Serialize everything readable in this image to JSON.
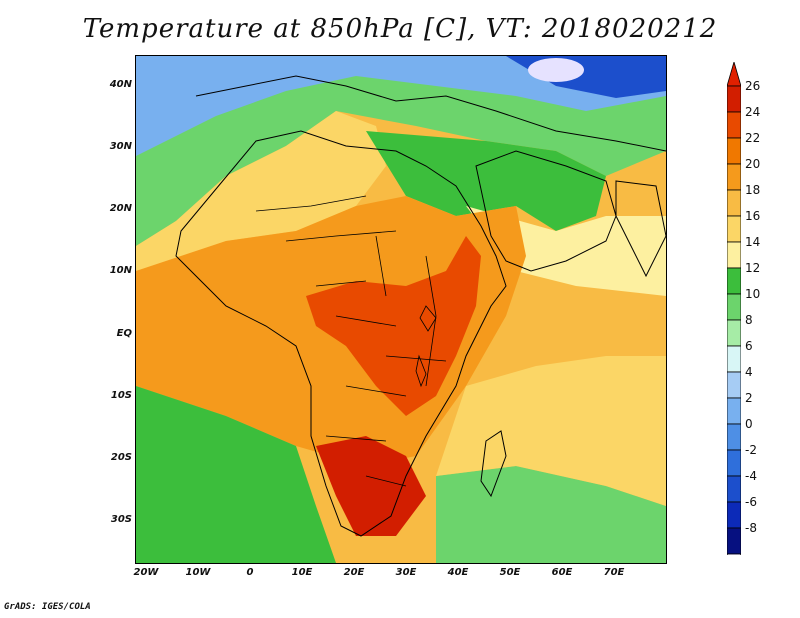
{
  "title": "Temperature at 850hPa [C], VT: 2018020212",
  "credit": "GrADS: IGES/COLA",
  "map": {
    "lat_ticks": [
      "40N",
      "30N",
      "20N",
      "10N",
      "EQ",
      "10S",
      "20S",
      "30S"
    ],
    "lon_ticks": [
      "20W",
      "10W",
      "0",
      "10E",
      "20E",
      "30E",
      "40E",
      "50E",
      "60E",
      "70E"
    ]
  },
  "colorbar": {
    "labels": [
      "26",
      "24",
      "22",
      "20",
      "18",
      "16",
      "14",
      "12",
      "10",
      "8",
      "6",
      "4",
      "2",
      "0",
      "-2",
      "-4",
      "-6",
      "-8"
    ],
    "colors_top_to_bottom": [
      "#d21e00",
      "#e84a00",
      "#f07800",
      "#f59a1c",
      "#f8bb44",
      "#fbd666",
      "#fdf0a0",
      "#3cbe3c",
      "#6cd46c",
      "#a6eca6",
      "#d8f6f6",
      "#a6ccf4",
      "#78b0ef",
      "#4e8fe5",
      "#2f6fdb",
      "#1c4fcc",
      "#0c2ab8",
      "#061080"
    ],
    "over_color": "#e02000",
    "under_color": "#e6e2ff"
  }
}
